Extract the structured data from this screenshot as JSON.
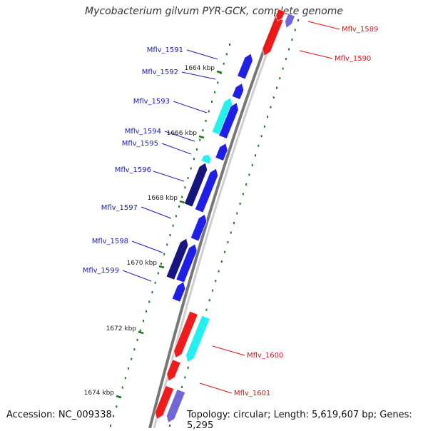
{
  "title": "Mycobacterium gilvum PYR-GCK, complete genome",
  "footer": {
    "accession": "Accession: NC_009338",
    "summary": "Topology: circular; Length: 5,619,607 bp; Genes: 5,295"
  },
  "colors": {
    "forward_gene": "#1414e6",
    "forward_gene_dark": "#0a0a78",
    "forward_gene_cyan": "#19f0f0",
    "reverse_gene": "#ee1010",
    "reverse_gene_violet": "#6a5fd8",
    "backbone": "#777777",
    "forward_label": "#1a1ab8",
    "reverse_label": "#dd1111",
    "tick": "#1a7a1a"
  },
  "map": {
    "scale_labels": [
      "1664 kbp",
      "1666 kbp",
      "1668 kbp",
      "1670 kbp",
      "1672 kbp",
      "1674 kbp"
    ],
    "forward_genes": [
      {
        "label": "Mflv_1591",
        "color": "forward_gene"
      },
      {
        "label": "Mflv_1592",
        "color": "forward_gene"
      },
      {
        "label": "Mflv_1593",
        "color": "forward_gene_cyan"
      },
      {
        "label": "Mflv_1594",
        "color": "forward_gene"
      },
      {
        "label": "Mflv_1595",
        "color": "forward_gene_cyan"
      },
      {
        "label": "Mflv_1596",
        "color": "forward_gene_dark"
      },
      {
        "label": "Mflv_1597",
        "color": "forward_gene"
      },
      {
        "label": "Mflv_1598",
        "color": "forward_gene_dark"
      },
      {
        "label": "Mflv_1599",
        "color": "forward_gene"
      }
    ],
    "reverse_genes": [
      {
        "label": "Mflv_1589",
        "color": "reverse_gene_violet"
      },
      {
        "label": "Mflv_1590",
        "color": "reverse_gene"
      },
      {
        "label": "Mflv_1600",
        "color": "forward_gene_cyan"
      },
      {
        "label": "Mflv_1601",
        "color": "reverse_gene_violet"
      }
    ]
  }
}
